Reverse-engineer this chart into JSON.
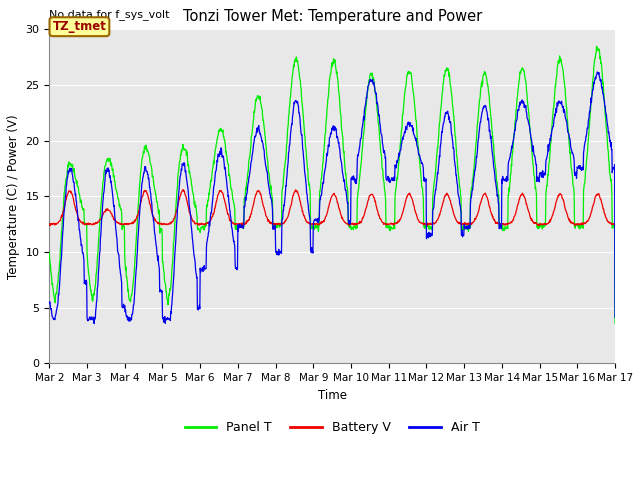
{
  "title": "Tonzi Tower Met: Temperature and Power",
  "ylabel": "Temperature (C) / Power (V)",
  "xlabel": "Time",
  "annotation_text": "No data for f_sys_volt",
  "legend_box_text": "TZ_tmet",
  "ylim": [
    0,
    30
  ],
  "xlim": [
    0,
    360
  ],
  "xtick_labels": [
    "Mar 2",
    "Mar 3",
    "Mar 4",
    "Mar 5",
    "Mar 6",
    "Mar 7",
    "Mar 8",
    "Mar 9",
    "Mar 10",
    "Mar 11",
    "Mar 12",
    "Mar 13",
    "Mar 14",
    "Mar 15",
    "Mar 16",
    "Mar 17"
  ],
  "xtick_positions": [
    0,
    24,
    48,
    72,
    96,
    120,
    144,
    168,
    192,
    216,
    240,
    264,
    288,
    312,
    336,
    360
  ],
  "line_green_color": "#00ee00",
  "line_red_color": "#ee0000",
  "line_blue_color": "#0000ee",
  "bg_color": "#e8e8e8",
  "legend_entries": [
    "Panel T",
    "Battery V",
    "Air T"
  ],
  "legend_colors": [
    "#00ee00",
    "#ee0000",
    "#0000ee"
  ],
  "yticks": [
    0,
    5,
    10,
    15,
    20,
    25,
    30
  ]
}
